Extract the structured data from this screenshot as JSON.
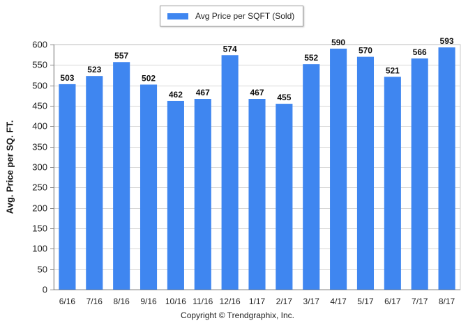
{
  "legend": {
    "label": "Avg Price per SQFT (Sold)",
    "color": "#3f86f0"
  },
  "footer": {
    "copyright": "Copyright © Trendgraphix, Inc."
  },
  "chart_data": {
    "type": "bar",
    "title": "",
    "xlabel": "",
    "ylabel": "Avg. Price per SQ. FT.",
    "ylim": [
      0,
      600
    ],
    "yticks": [
      0,
      50,
      100,
      150,
      200,
      250,
      300,
      350,
      400,
      450,
      500,
      550,
      600
    ],
    "grid": true,
    "legend_position": "top-center",
    "categories": [
      "6/16",
      "7/16",
      "8/16",
      "9/16",
      "10/16",
      "11/16",
      "12/16",
      "1/17",
      "2/17",
      "3/17",
      "4/17",
      "5/17",
      "6/17",
      "7/17",
      "8/17"
    ],
    "series": [
      {
        "name": "Avg Price per SQFT (Sold)",
        "color": "#3f86f0",
        "values": [
          503,
          523,
          557,
          502,
          462,
          467,
          574,
          467,
          455,
          552,
          590,
          570,
          521,
          566,
          593
        ]
      }
    ]
  }
}
